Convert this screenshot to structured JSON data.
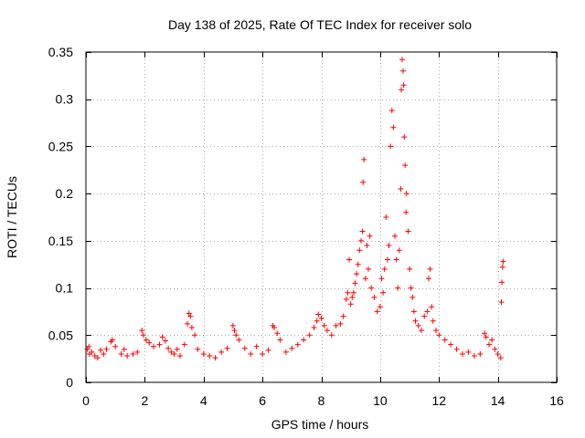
{
  "chart_data": {
    "type": "scatter",
    "title": "Day 138 of 2025, Rate Of TEC Index for receiver solo",
    "xlabel": "GPS time / hours",
    "ylabel": "ROTI / TECUs",
    "xlim": [
      0,
      16
    ],
    "ylim": [
      0,
      0.35
    ],
    "xticks": [
      0,
      2,
      4,
      6,
      8,
      10,
      12,
      14,
      16
    ],
    "xtick_labels": [
      "0",
      "2",
      "4",
      "6",
      "8",
      "10",
      "12",
      "14",
      "16"
    ],
    "yticks": [
      0,
      0.05,
      0.1,
      0.15,
      0.2,
      0.25,
      0.3,
      0.35
    ],
    "ytick_labels": [
      "0",
      "0.05",
      "0.1",
      "0.15",
      "0.2",
      "0.25",
      "0.3",
      "0.35"
    ],
    "grid": true,
    "marker": "+",
    "color": "#ff0000",
    "series": [
      {
        "name": "ROTI",
        "points": [
          [
            0.05,
            0.035
          ],
          [
            0.1,
            0.038
          ],
          [
            0.12,
            0.03
          ],
          [
            0.2,
            0.032
          ],
          [
            0.3,
            0.028
          ],
          [
            0.4,
            0.026
          ],
          [
            0.5,
            0.034
          ],
          [
            0.6,
            0.03
          ],
          [
            0.7,
            0.035
          ],
          [
            0.85,
            0.043
          ],
          [
            0.9,
            0.045
          ],
          [
            1.0,
            0.038
          ],
          [
            1.2,
            0.03
          ],
          [
            1.3,
            0.035
          ],
          [
            1.4,
            0.028
          ],
          [
            1.6,
            0.03
          ],
          [
            1.75,
            0.032
          ],
          [
            1.9,
            0.055
          ],
          [
            1.95,
            0.05
          ],
          [
            2.05,
            0.045
          ],
          [
            2.15,
            0.042
          ],
          [
            2.3,
            0.038
          ],
          [
            2.5,
            0.04
          ],
          [
            2.6,
            0.048
          ],
          [
            2.7,
            0.044
          ],
          [
            2.8,
            0.036
          ],
          [
            2.9,
            0.032
          ],
          [
            3.0,
            0.03
          ],
          [
            3.1,
            0.035
          ],
          [
            3.2,
            0.028
          ],
          [
            3.35,
            0.04
          ],
          [
            3.45,
            0.062
          ],
          [
            3.5,
            0.073
          ],
          [
            3.55,
            0.07
          ],
          [
            3.6,
            0.058
          ],
          [
            3.7,
            0.05
          ],
          [
            3.8,
            0.035
          ],
          [
            4.0,
            0.03
          ],
          [
            4.2,
            0.028
          ],
          [
            4.4,
            0.026
          ],
          [
            4.6,
            0.032
          ],
          [
            4.8,
            0.036
          ],
          [
            5.0,
            0.06
          ],
          [
            5.05,
            0.055
          ],
          [
            5.1,
            0.05
          ],
          [
            5.2,
            0.045
          ],
          [
            5.4,
            0.036
          ],
          [
            5.6,
            0.03
          ],
          [
            5.8,
            0.038
          ],
          [
            6.0,
            0.03
          ],
          [
            6.2,
            0.034
          ],
          [
            6.35,
            0.06
          ],
          [
            6.4,
            0.058
          ],
          [
            6.5,
            0.052
          ],
          [
            6.6,
            0.045
          ],
          [
            6.8,
            0.032
          ],
          [
            7.0,
            0.036
          ],
          [
            7.2,
            0.04
          ],
          [
            7.4,
            0.045
          ],
          [
            7.6,
            0.05
          ],
          [
            7.75,
            0.058
          ],
          [
            7.85,
            0.065
          ],
          [
            7.9,
            0.072
          ],
          [
            8.0,
            0.068
          ],
          [
            8.1,
            0.06
          ],
          [
            8.2,
            0.055
          ],
          [
            8.35,
            0.05
          ],
          [
            8.5,
            0.06
          ],
          [
            8.65,
            0.062
          ],
          [
            8.75,
            0.07
          ],
          [
            8.85,
            0.088
          ],
          [
            8.9,
            0.095
          ],
          [
            8.95,
            0.13
          ],
          [
            9.0,
            0.083
          ],
          [
            9.05,
            0.09
          ],
          [
            9.1,
            0.095
          ],
          [
            9.15,
            0.105
          ],
          [
            9.2,
            0.115
          ],
          [
            9.25,
            0.125
          ],
          [
            9.3,
            0.14
          ],
          [
            9.35,
            0.15
          ],
          [
            9.4,
            0.16
          ],
          [
            9.42,
            0.212
          ],
          [
            9.45,
            0.236
          ],
          [
            9.5,
            0.11
          ],
          [
            9.55,
            0.145
          ],
          [
            9.6,
            0.12
          ],
          [
            9.65,
            0.155
          ],
          [
            9.7,
            0.1
          ],
          [
            9.8,
            0.09
          ],
          [
            9.9,
            0.075
          ],
          [
            10.0,
            0.08
          ],
          [
            10.05,
            0.11
          ],
          [
            10.1,
            0.095
          ],
          [
            10.15,
            0.12
          ],
          [
            10.2,
            0.175
          ],
          [
            10.25,
            0.13
          ],
          [
            10.3,
            0.145
          ],
          [
            10.35,
            0.25
          ],
          [
            10.4,
            0.288
          ],
          [
            10.45,
            0.27
          ],
          [
            10.5,
            0.155
          ],
          [
            10.55,
            0.13
          ],
          [
            10.6,
            0.1
          ],
          [
            10.65,
            0.14
          ],
          [
            10.7,
            0.205
          ],
          [
            10.72,
            0.31
          ],
          [
            10.75,
            0.342
          ],
          [
            10.78,
            0.33
          ],
          [
            10.8,
            0.315
          ],
          [
            10.82,
            0.26
          ],
          [
            10.85,
            0.23
          ],
          [
            10.88,
            0.18
          ],
          [
            10.9,
            0.2
          ],
          [
            10.95,
            0.16
          ],
          [
            11.0,
            0.12
          ],
          [
            11.05,
            0.1
          ],
          [
            11.1,
            0.09
          ],
          [
            11.15,
            0.075
          ],
          [
            11.2,
            0.065
          ],
          [
            11.3,
            0.06
          ],
          [
            11.4,
            0.055
          ],
          [
            11.5,
            0.07
          ],
          [
            11.6,
            0.075
          ],
          [
            11.65,
            0.11
          ],
          [
            11.7,
            0.12
          ],
          [
            11.75,
            0.08
          ],
          [
            11.8,
            0.065
          ],
          [
            11.9,
            0.055
          ],
          [
            12.0,
            0.05
          ],
          [
            12.2,
            0.045
          ],
          [
            12.4,
            0.04
          ],
          [
            12.6,
            0.035
          ],
          [
            12.8,
            0.03
          ],
          [
            13.0,
            0.032
          ],
          [
            13.2,
            0.028
          ],
          [
            13.4,
            0.03
          ],
          [
            13.55,
            0.052
          ],
          [
            13.6,
            0.048
          ],
          [
            13.7,
            0.04
          ],
          [
            13.8,
            0.045
          ],
          [
            13.9,
            0.035
          ],
          [
            14.0,
            0.03
          ],
          [
            14.1,
            0.026
          ],
          [
            14.12,
            0.085
          ],
          [
            14.14,
            0.106
          ],
          [
            14.16,
            0.122
          ],
          [
            14.18,
            0.128
          ]
        ]
      }
    ]
  }
}
